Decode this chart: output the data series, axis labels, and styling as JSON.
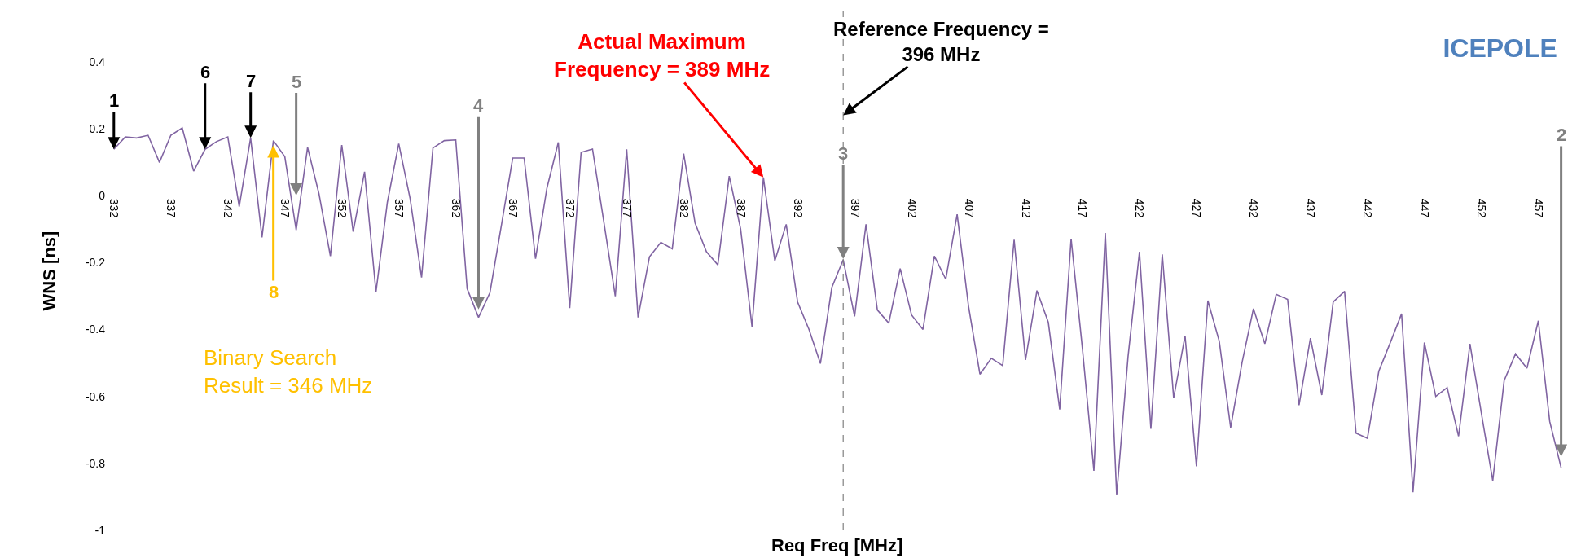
{
  "chart_data": {
    "type": "line",
    "title": "ICEPOLE",
    "xlabel": "Req Freq [MHz]",
    "ylabel": "WNS [ns]",
    "x": [
      332,
      333,
      334,
      335,
      336,
      337,
      338,
      339,
      340,
      341,
      342,
      343,
      344,
      345,
      346,
      347,
      348,
      349,
      350,
      351,
      352,
      353,
      354,
      355,
      356,
      357,
      358,
      359,
      360,
      361,
      362,
      363,
      364,
      365,
      366,
      367,
      368,
      369,
      370,
      371,
      372,
      373,
      374,
      375,
      376,
      377,
      378,
      379,
      380,
      381,
      382,
      383,
      384,
      385,
      386,
      387,
      388,
      389,
      390,
      391,
      392,
      393,
      394,
      395,
      396,
      397,
      398,
      399,
      400,
      401,
      402,
      403,
      404,
      405,
      406,
      407,
      408,
      409,
      410,
      411,
      412,
      413,
      414,
      415,
      416,
      417,
      418,
      419,
      420,
      421,
      422,
      423,
      424,
      425,
      426,
      427,
      428,
      429,
      430,
      431,
      432,
      433,
      434,
      435,
      436,
      437,
      438,
      439,
      440,
      441,
      442,
      443,
      444,
      445,
      446,
      447,
      448,
      449,
      450,
      451,
      452,
      453,
      454,
      455,
      456,
      457,
      458,
      459
    ],
    "series": [
      {
        "color": "#8064a2",
        "values": [
          0.138,
          0.175,
          0.172,
          0.18,
          0.099,
          0.18,
          0.202,
          0.073,
          0.138,
          0.161,
          0.175,
          -0.033,
          0.172,
          -0.125,
          0.164,
          0.116,
          -0.103,
          0.144,
          0.005,
          -0.181,
          0.151,
          -0.108,
          0.071,
          -0.288,
          -0.02,
          0.155,
          -0.01,
          -0.245,
          0.142,
          0.164,
          0.166,
          -0.278,
          -0.364,
          -0.29,
          -0.09,
          0.112,
          0.112,
          -0.189,
          0.022,
          0.159,
          -0.336,
          0.129,
          0.139,
          -0.08,
          -0.301,
          0.138,
          -0.364,
          -0.183,
          -0.14,
          -0.159,
          0.125,
          -0.082,
          -0.168,
          -0.207,
          0.058,
          -0.1,
          -0.392,
          0.054,
          -0.195,
          -0.086,
          -0.318,
          -0.4,
          -0.502,
          -0.275,
          -0.192,
          -0.361,
          -0.086,
          -0.342,
          -0.381,
          -0.218,
          -0.357,
          -0.4,
          -0.181,
          -0.25,
          -0.056,
          -0.331,
          -0.534,
          -0.486,
          -0.508,
          -0.132,
          -0.491,
          -0.284,
          -0.379,
          -0.639,
          -0.129,
          -0.46,
          -0.822,
          -0.112,
          -0.895,
          -0.48,
          -0.168,
          -0.697,
          -0.176,
          -0.605,
          -0.419,
          -0.809,
          -0.314,
          -0.435,
          -0.693,
          -0.499,
          -0.338,
          -0.443,
          -0.295,
          -0.31,
          -0.626,
          -0.426,
          -0.596,
          -0.318,
          -0.286,
          -0.71,
          -0.725,
          -0.525,
          -0.44,
          -0.353,
          -0.886,
          -0.439,
          -0.6,
          -0.574,
          -0.719,
          -0.443,
          -0.65,
          -0.852,
          -0.553,
          -0.473,
          -0.516,
          -0.374,
          -0.675,
          -0.813
        ]
      }
    ],
    "xlim": [
      331.3,
      459.6
    ],
    "xticks": [
      332,
      337,
      342,
      347,
      352,
      357,
      362,
      367,
      372,
      377,
      382,
      387,
      392,
      397,
      402,
      407,
      412,
      417,
      422,
      427,
      432,
      437,
      442,
      447,
      452,
      457
    ],
    "ylim": [
      -1,
      0.55
    ],
    "yticks": [
      -1,
      -0.8,
      -0.6,
      -0.4,
      -0.2,
      0,
      0.2,
      0.4
    ],
    "marker": "none",
    "line_style": "solid",
    "ref_lines": [
      {
        "axis": "x",
        "value": 396,
        "color": "#808080",
        "line_style": "dashed"
      }
    ],
    "annotations": [
      {
        "text": "1",
        "x": 332,
        "y": 0.138
      },
      {
        "text": "6",
        "x": 340,
        "y": 0.138
      },
      {
        "text": "7",
        "x": 344,
        "y": 0.172
      },
      {
        "text": "5",
        "x": 348,
        "y": 0
      },
      {
        "text": "4",
        "x": 364,
        "y": -0.34
      },
      {
        "text": "3",
        "x": 396,
        "y": -0.19
      },
      {
        "text": "2",
        "x": 459,
        "y": -0.78
      },
      {
        "text": "8",
        "x": 346,
        "y": 0.15
      },
      {
        "text": "Actual Maximum\nFrequency = 389 MHz",
        "x": 389,
        "y": 0.054
      },
      {
        "text": "Reference Frequency =\n396 MHz",
        "x": 396,
        "y": 0.24
      },
      "Binary Search\nResult = 346 MHz"
    ]
  }
}
